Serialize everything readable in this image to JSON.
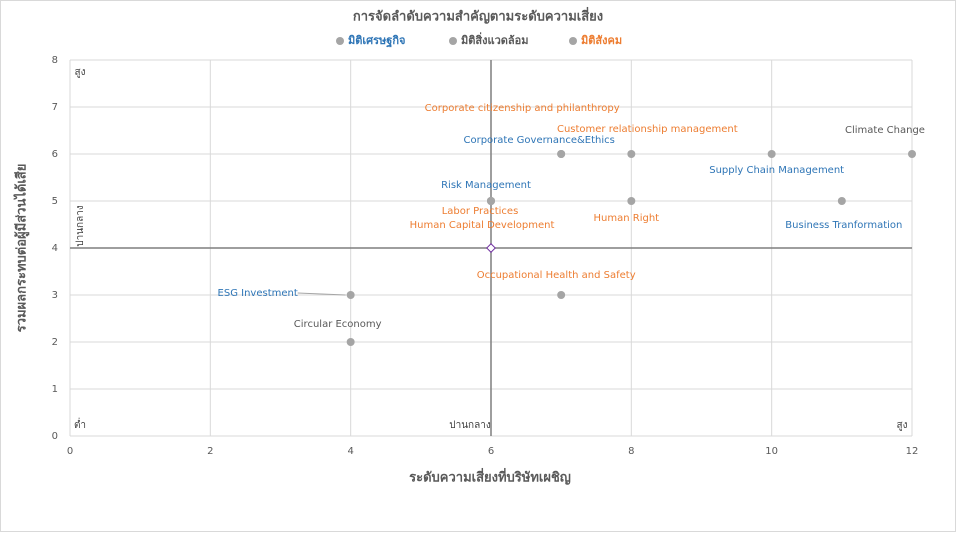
{
  "chart_data": {
    "type": "scatter",
    "title": "การจัดลำดับความสำคัญตามระดับความเสี่ยง",
    "x_label": "ระดับความเสี่ยงที่บริษัทเผชิญ",
    "y_label": "รวมผลกระทบต่อผู้มีส่วนได้เสีย",
    "xlim": [
      0,
      12
    ],
    "xticks": [
      0,
      2,
      4,
      6,
      8,
      10,
      12
    ],
    "ylim": [
      0,
      8
    ],
    "yticks": [
      0,
      1,
      2,
      3,
      4,
      5,
      6,
      7,
      8
    ],
    "grid": true,
    "legend": "top",
    "marker_color": "#a5a5a5",
    "quadrant_x": 6,
    "quadrant_y": 4,
    "annotations": [
      "สูง",
      "ปานกลาง",
      "ต่ำ",
      "ปานกลาง",
      "สูง"
    ],
    "series": [
      {
        "name": "มิติเศรษฐกิจ",
        "color": "#2e75b6",
        "x": [
          4,
          6,
          7,
          10,
          11
        ],
        "values": [
          3,
          5,
          6,
          6,
          5
        ],
        "labels": [
          "ESG Investment",
          "Risk Management",
          "Corporate  Governance&Ethics",
          "Supply Chain Management",
          "Business Tranformation"
        ]
      },
      {
        "name": "มิติสิ่งแวดล้อม",
        "color": "#595959",
        "x": [
          12,
          4
        ],
        "values": [
          6,
          2
        ],
        "labels": [
          "Climate Change",
          "Circular Economy"
        ]
      },
      {
        "name": "มิติสังคม",
        "color": "#ed7d31",
        "x": [
          7,
          8,
          6,
          6,
          8,
          7
        ],
        "values": [
          6,
          6,
          5,
          5,
          5,
          3
        ],
        "labels": [
          "Corporate citizenship and philanthropy",
          "Customer relationship management",
          "Labor Practices",
          "Human Capital Development",
          "Human Right",
          "Occupational Health and Safety"
        ]
      }
    ]
  }
}
